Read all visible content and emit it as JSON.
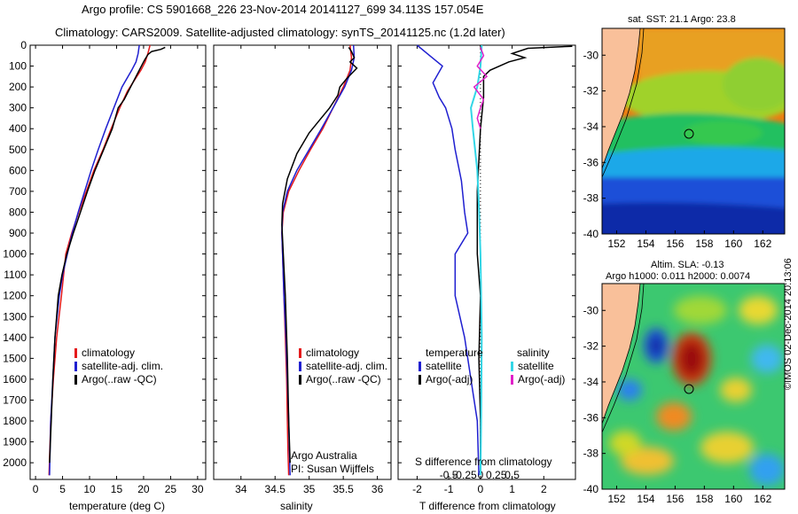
{
  "titles": {
    "line1": "Argo profile: CS 5901668_226 23-Nov-2014 20141127_699 34.113S 157.054E",
    "line2": "Climatology: CARS2009. Satellite-adjusted climatology: synTS_20141125.nc (1.2d later)"
  },
  "colors": {
    "climatology": "#e41a1c",
    "satellite": "#1f1fd0",
    "argo": "#000000",
    "salinity_satellite": "#33d6e6",
    "salinity_argo": "#e020c8"
  },
  "chart_data": [
    {
      "type": "line",
      "name": "temperature-panel",
      "xlabel": "temperature (deg C)",
      "ylabel": "",
      "xlim": [
        -1,
        31.5
      ],
      "ylim": [
        2080,
        0
      ],
      "xticks": [
        "0",
        "5",
        "10",
        "15",
        "20",
        "25",
        "30"
      ],
      "xtick_values": [
        0,
        5,
        10,
        15,
        20,
        25,
        30
      ],
      "yticks": [
        "0",
        "100",
        "200",
        "300",
        "400",
        "500",
        "600",
        "700",
        "800",
        "900",
        "1000",
        "1100",
        "1200",
        "1300",
        "1400",
        "1500",
        "1600",
        "1700",
        "1800",
        "1900",
        "2000"
      ],
      "ytick_values": [
        0,
        100,
        200,
        300,
        400,
        500,
        600,
        700,
        800,
        900,
        1000,
        1100,
        1200,
        1300,
        1400,
        1500,
        1600,
        1700,
        1800,
        1900,
        2000
      ],
      "legend": [
        "climatology",
        "satellite-adj. clim.",
        "Argo(..raw -QC)"
      ],
      "series": [
        {
          "name": "climatology",
          "color_key": "climatology",
          "x": [
            21.2,
            20.8,
            20.3,
            19.5,
            18.5,
            17.0,
            15.6,
            14.0,
            12.5,
            10.8,
            9.4,
            8.0,
            6.7,
            5.6,
            4.8,
            3.9,
            3.3,
            2.8,
            2.5
          ],
          "y": [
            0,
            40,
            80,
            120,
            160,
            220,
            300,
            400,
            500,
            600,
            700,
            800,
            900,
            1000,
            1200,
            1400,
            1600,
            1800,
            2060
          ]
        },
        {
          "name": "satellite-adj. clim.",
          "color_key": "satellite",
          "x": [
            19.2,
            19.0,
            18.6,
            17.8,
            16.0,
            14.5,
            13.0,
            11.6,
            10.3,
            9.1,
            7.9,
            6.8,
            5.9,
            5.0,
            4.4,
            3.6,
            3.2,
            2.8,
            2.6
          ],
          "y": [
            0,
            40,
            80,
            120,
            200,
            300,
            400,
            500,
            600,
            700,
            800,
            900,
            1000,
            1100,
            1200,
            1400,
            1600,
            1800,
            2060
          ]
        },
        {
          "name": "Argo(..raw -QC)",
          "color_key": "argo",
          "x": [
            24.0,
            23.2,
            21.5,
            20.8,
            20.2,
            19.8,
            18.8,
            17.2,
            16.4,
            15.3,
            14.2,
            12.6,
            11.0,
            9.6,
            8.3,
            7.0,
            5.8,
            4.9,
            4.2,
            3.6,
            3.2,
            2.9,
            2.6
          ],
          "y": [
            10,
            20,
            30,
            45,
            70,
            90,
            140,
            220,
            260,
            300,
            400,
            500,
            600,
            700,
            800,
            900,
            1000,
            1100,
            1200,
            1400,
            1600,
            1800,
            2000
          ]
        }
      ]
    },
    {
      "type": "line",
      "name": "salinity-panel",
      "xlabel": "salinity",
      "xlim": [
        33.6,
        36.2
      ],
      "ylim": [
        2080,
        0
      ],
      "xticks": [
        "34",
        "34.5",
        "35",
        "35.5",
        "36"
      ],
      "xtick_values": [
        34,
        34.5,
        35,
        35.5,
        36
      ],
      "legend": [
        "climatology",
        "satellite-adj. clim.",
        "Argo(..raw -QC)"
      ],
      "annotation": [
        "Argo Australia",
        "PI: Susan Wijffels"
      ],
      "series": [
        {
          "name": "climatology",
          "color_key": "climatology",
          "x": [
            35.6,
            35.62,
            35.6,
            35.5,
            35.35,
            35.2,
            35.02,
            34.85,
            34.7,
            34.62,
            34.6,
            34.61,
            34.63,
            34.65,
            34.67,
            34.68,
            34.69,
            34.7
          ],
          "y": [
            0,
            60,
            120,
            200,
            300,
            400,
            500,
            600,
            700,
            800,
            900,
            1000,
            1200,
            1400,
            1600,
            1800,
            1950,
            2060
          ]
        },
        {
          "name": "satellite-adj. clim.",
          "color_key": "satellite",
          "x": [
            35.65,
            35.66,
            35.62,
            35.52,
            35.35,
            35.18,
            35.0,
            34.82,
            34.68,
            34.61,
            34.6,
            34.61,
            34.63,
            34.66,
            34.68,
            34.7,
            34.71,
            34.72
          ],
          "y": [
            0,
            60,
            120,
            200,
            300,
            400,
            500,
            600,
            700,
            800,
            900,
            1000,
            1200,
            1400,
            1600,
            1800,
            1950,
            2060
          ]
        },
        {
          "name": "Argo(..raw -QC)",
          "color_key": "argo",
          "x": [
            35.58,
            35.62,
            35.66,
            35.6,
            35.7,
            35.55,
            35.45,
            35.42,
            35.3,
            35.15,
            35.0,
            34.82,
            34.68,
            34.61,
            34.6,
            34.62,
            34.65,
            34.68,
            34.7,
            34.72
          ],
          "y": [
            10,
            30,
            60,
            80,
            110,
            160,
            200,
            240,
            300,
            360,
            420,
            520,
            640,
            760,
            860,
            1000,
            1200,
            1500,
            1800,
            2000
          ]
        }
      ]
    },
    {
      "type": "line",
      "name": "difference-panel",
      "xlabel": "T difference from climatology",
      "xlabel_top": "S difference from climatology",
      "xlim": [
        -2.6,
        3.0
      ],
      "ylim": [
        2080,
        0
      ],
      "xticks": [
        "-2",
        "-1",
        "0",
        "1",
        "2"
      ],
      "xtick_values": [
        -2,
        -1,
        0,
        1,
        2
      ],
      "sticks": [
        "-0.5",
        "-0.25",
        "0",
        "0.25",
        "0.5"
      ],
      "stick_values": [
        -0.5,
        -0.25,
        0,
        0.25,
        0.5
      ],
      "legend_groups": {
        "temperature": [
          "satellite",
          "Argo(-adj)"
        ],
        "salinity": [
          "satellite",
          "Argo(-adj)"
        ]
      },
      "series": [
        {
          "name": "temperature satellite",
          "color_key": "satellite",
          "x": [
            -2.0,
            -1.6,
            -1.2,
            -1.5,
            -1.3,
            -1.1,
            -0.9,
            -0.8,
            -0.6,
            -0.5,
            -0.4,
            -0.8,
            -0.8,
            -0.5,
            -0.3,
            -0.1,
            -0.05
          ],
          "y": [
            0,
            50,
            100,
            180,
            250,
            300,
            400,
            500,
            650,
            800,
            900,
            1000,
            1200,
            1400,
            1600,
            1800,
            2060
          ]
        },
        {
          "name": "temperature Argo(-adj)",
          "color_key": "argo",
          "x": [
            2.9,
            1.5,
            1.0,
            1.4,
            0.9,
            0.6,
            0.3,
            0.1,
            0.1,
            0.0,
            -0.1,
            -0.1,
            0.0,
            -0.05,
            0.0,
            0.0
          ],
          "y": [
            5,
            15,
            40,
            60,
            80,
            100,
            120,
            150,
            250,
            400,
            700,
            1000,
            1200,
            1500,
            1800,
            2000
          ]
        },
        {
          "name": "salinity satellite",
          "color_key": "salinity_satellite",
          "x": [
            0.02,
            0.01,
            0.0,
            -0.05,
            -0.15,
            -0.12,
            -0.05,
            -0.02,
            0.0,
            0.02,
            0.01,
            0.0
          ],
          "y": [
            0,
            50,
            100,
            200,
            300,
            400,
            600,
            800,
            1000,
            1400,
            1800,
            2060
          ]
        },
        {
          "name": "salinity Argo(-adj)",
          "color_key": "salinity_argo",
          "x": [
            0.0,
            0.05,
            -0.05,
            0.1,
            -0.1,
            0.05,
            0.0,
            -0.05,
            0.0
          ],
          "y": [
            10,
            50,
            100,
            150,
            200,
            260,
            300,
            350,
            400
          ]
        }
      ]
    },
    {
      "type": "heatmap",
      "name": "sst-map",
      "title": "sat. SST: 21.1  Argo: 23.8",
      "xlim": [
        151,
        163.5
      ],
      "ylim": [
        -40,
        -28.5
      ],
      "xticks": [
        "152",
        "154",
        "156",
        "158",
        "160",
        "162"
      ],
      "xtick_values": [
        152,
        154,
        156,
        158,
        160,
        162
      ],
      "yticks": [
        "-30",
        "-32",
        "-34",
        "-36",
        "-38",
        "-40"
      ],
      "ytick_values": [
        -30,
        -32,
        -34,
        -36,
        -38,
        -40
      ],
      "argo_position": [
        157.054,
        -34.113
      ]
    },
    {
      "type": "heatmap",
      "name": "sla-map",
      "title": [
        "Altim. SLA: -0.13",
        "Argo h1000: 0.011 h2000: 0.0074"
      ],
      "xlim": [
        151,
        163.5
      ],
      "ylim": [
        -40,
        -28.5
      ],
      "xticks": [
        "152",
        "154",
        "156",
        "158",
        "160",
        "162"
      ],
      "xtick_values": [
        152,
        154,
        156,
        158,
        160,
        162
      ],
      "yticks": [
        "-30",
        "-32",
        "-34",
        "-36",
        "-38",
        "-40"
      ],
      "ytick_values": [
        -30,
        -32,
        -34,
        -36,
        -38,
        -40
      ],
      "argo_position": [
        157.054,
        -34.113
      ]
    }
  ],
  "credit": "©IMOS 02-Dec-2014 20:13:06"
}
